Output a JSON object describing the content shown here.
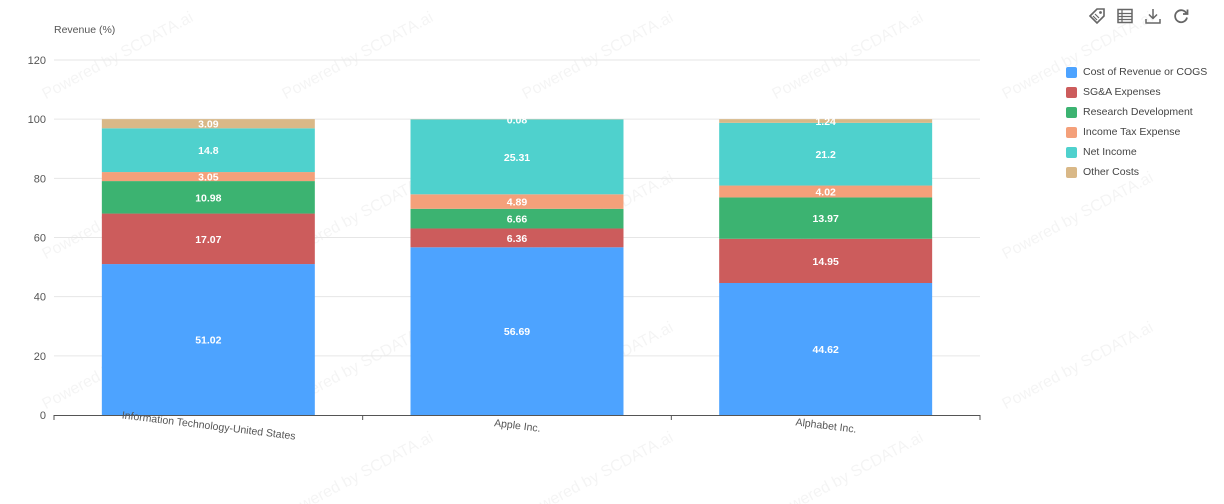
{
  "toolbar": {
    "icons": [
      "tag-icon",
      "data-table-icon",
      "download-icon",
      "refresh-icon"
    ]
  },
  "watermark_text": "Powered by SCDATA.ai",
  "chart_data": {
    "type": "bar",
    "stacked": true,
    "categories": [
      "Information Technology-United States",
      "Apple Inc.",
      "Alphabet Inc."
    ],
    "ylabel": "Revenue (%)",
    "ylim": [
      0,
      120
    ],
    "yticks": [
      0,
      20,
      40,
      60,
      80,
      100,
      120
    ],
    "grid": true,
    "legend_position": "right",
    "series": [
      {
        "name": "Cost of Revenue or COGS",
        "color": "#4da3ff",
        "values": [
          51.02,
          56.69,
          44.62
        ]
      },
      {
        "name": "SG&A Expenses",
        "color": "#cc5c5c",
        "values": [
          17.07,
          6.36,
          14.95
        ]
      },
      {
        "name": "Research Development",
        "color": "#3cb371",
        "values": [
          10.98,
          6.66,
          13.97
        ]
      },
      {
        "name": "Income Tax Expense",
        "color": "#f4a07a",
        "values": [
          3.05,
          4.89,
          4.02
        ]
      },
      {
        "name": "Net Income",
        "color": "#4fd1cd",
        "values": [
          14.8,
          25.31,
          21.2
        ]
      },
      {
        "name": "Other Costs",
        "color": "#d9b887",
        "values": [
          3.09,
          0.08,
          1.24
        ]
      }
    ]
  }
}
